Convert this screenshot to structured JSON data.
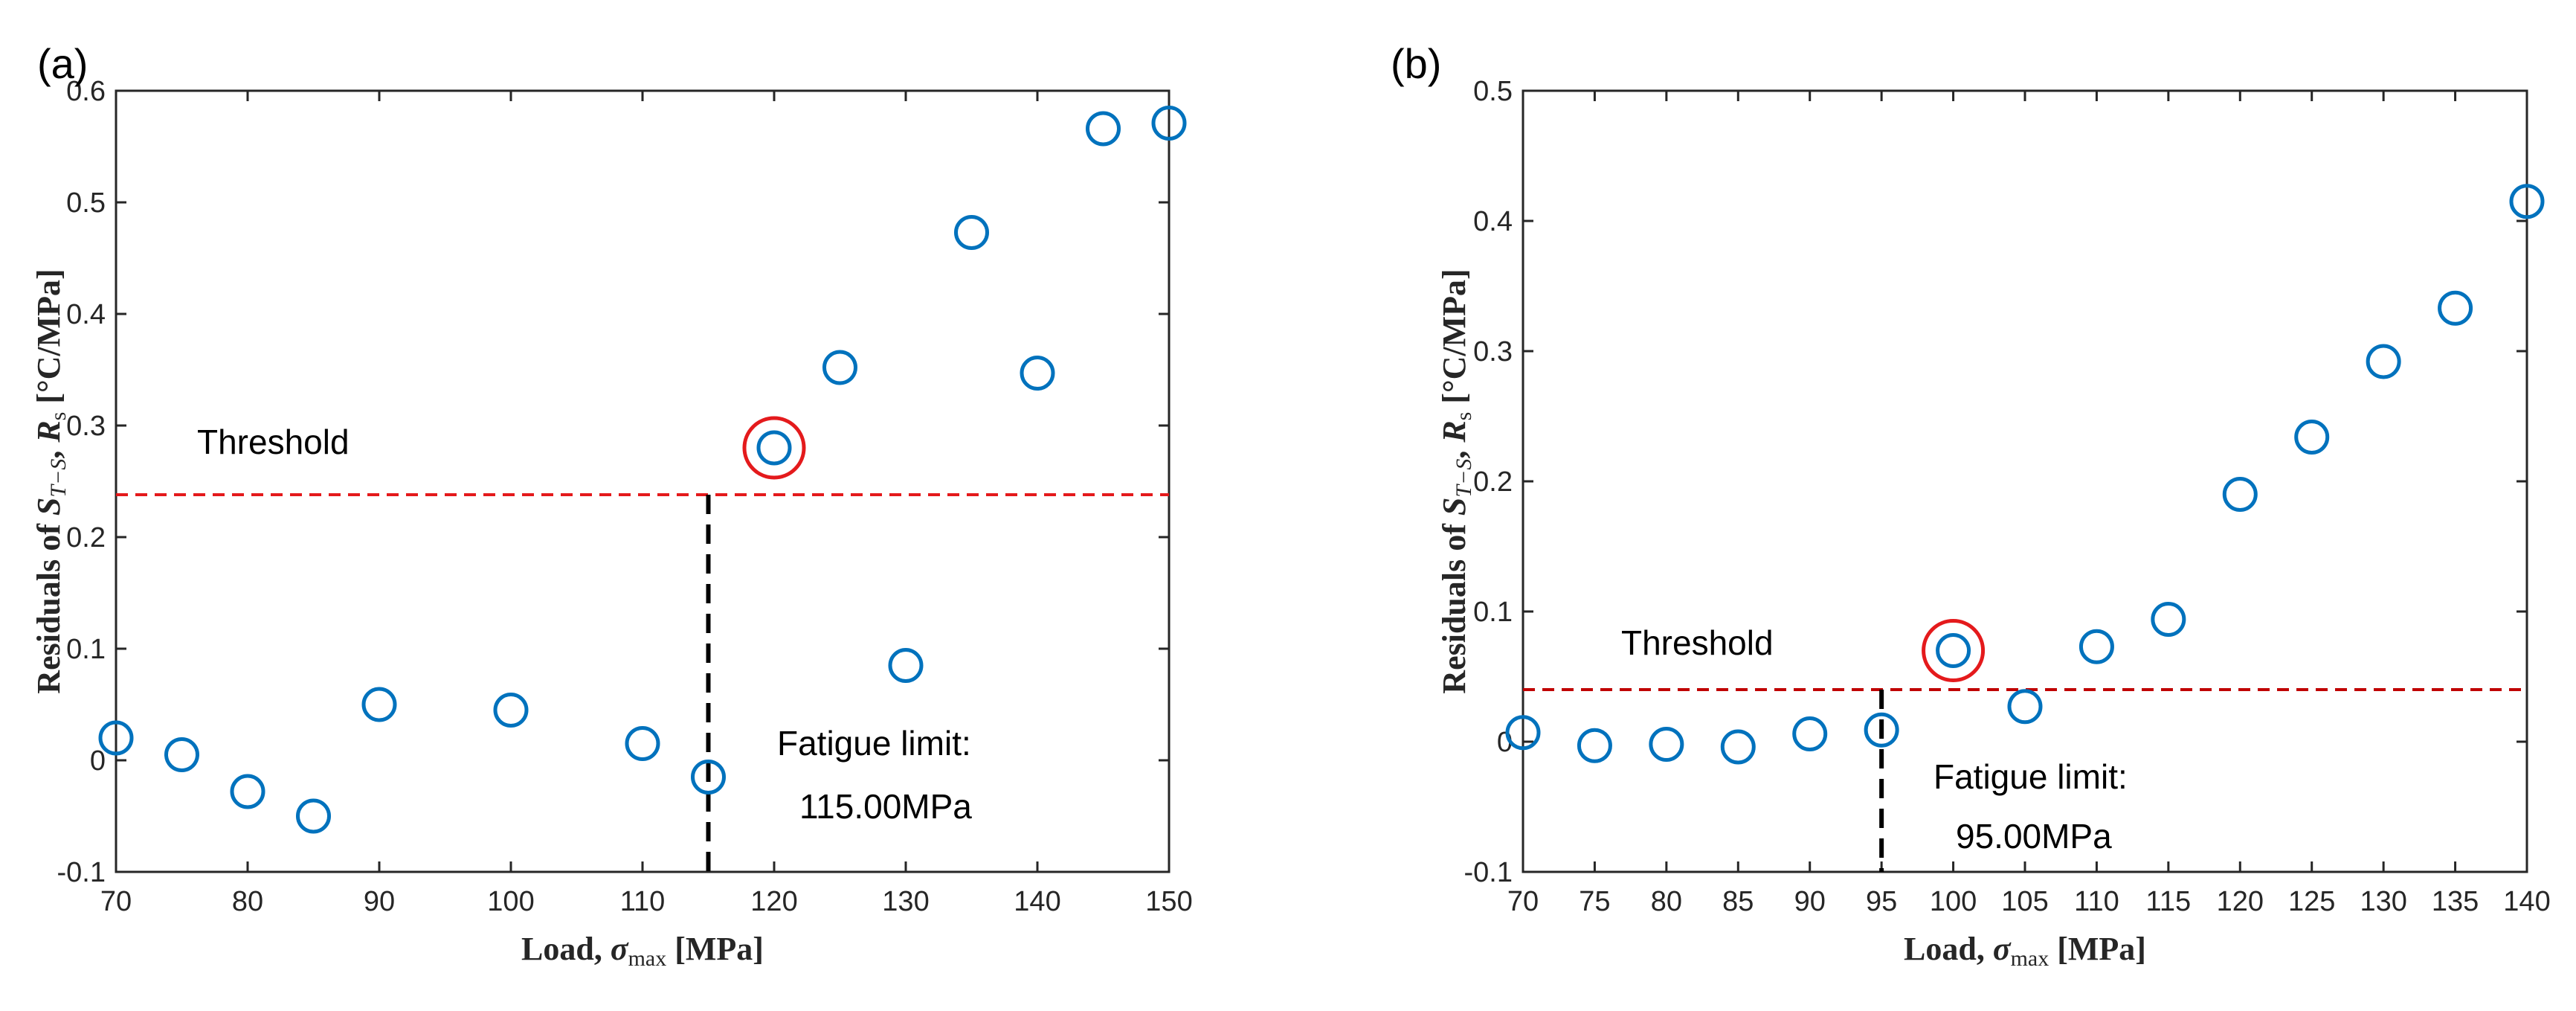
{
  "chart_data": [
    {
      "type": "scatter",
      "panel_label": "(a)",
      "xlabel_text": "Load, ",
      "xlabel_math_symbol": "σ",
      "xlabel_math_sub": "max",
      "xlabel_unit": " [MPa]",
      "ylabel_text": "Residuals of ",
      "ylabel_math_symbol": "S",
      "ylabel_math_sub": "T−S",
      "ylabel_mid": ", ",
      "ylabel_math2_symbol": "R",
      "ylabel_math2_sub": "s",
      "ylabel_unit": " [°C/MPa]",
      "xlim": [
        70,
        150
      ],
      "ylim": [
        -0.1,
        0.6
      ],
      "xticks": [
        70,
        80,
        90,
        100,
        110,
        120,
        130,
        140,
        150
      ],
      "yticks": [
        -0.1,
        0,
        0.1,
        0.2,
        0.3,
        0.4,
        0.5,
        0.6
      ],
      "xtick_labels": [
        "70",
        "80",
        "90",
        "100",
        "110",
        "120",
        "130",
        "140",
        "150"
      ],
      "ytick_labels": [
        "-0.1",
        "0",
        "0.1",
        "0.2",
        "0.3",
        "0.4",
        "0.5",
        "0.6"
      ],
      "series": [
        {
          "name": "Residuals",
          "x": [
            70,
            75,
            80,
            85,
            90,
            100,
            110,
            115,
            120,
            125,
            130,
            135,
            140,
            145,
            150
          ],
          "y": [
            0.02,
            0.005,
            -0.028,
            -0.05,
            0.05,
            0.045,
            0.015,
            -0.015,
            0.28,
            0.352,
            0.085,
            0.473,
            0.347,
            0.566,
            0.571
          ],
          "color": "#0072BD"
        }
      ],
      "highlight": {
        "x": 120,
        "y": 0.28,
        "color": "#E41A1C"
      },
      "threshold": {
        "label": "Threshold",
        "value": 0.238,
        "color": "#E41A1C"
      },
      "fatigue_limit": {
        "x": 115,
        "label_line1": "Fatigue limit:",
        "label_line2": "115.00MPa",
        "color": "#000000"
      }
    },
    {
      "type": "scatter",
      "panel_label": "(b)",
      "xlabel_text": "Load, ",
      "xlabel_math_symbol": "σ",
      "xlabel_math_sub": "max",
      "xlabel_unit": " [MPa]",
      "ylabel_text": "Residuals of ",
      "ylabel_math_symbol": "S",
      "ylabel_math_sub": "T−S",
      "ylabel_mid": ", ",
      "ylabel_math2_symbol": "R",
      "ylabel_math2_sub": "s",
      "ylabel_unit": " [°C/MPa]",
      "xlim": [
        70,
        140
      ],
      "ylim": [
        -0.1,
        0.5
      ],
      "xticks": [
        70,
        75,
        80,
        85,
        90,
        95,
        100,
        105,
        110,
        115,
        120,
        125,
        130,
        135,
        140
      ],
      "yticks": [
        -0.1,
        0,
        0.1,
        0.2,
        0.3,
        0.4,
        0.5
      ],
      "xtick_labels": [
        "70",
        "75",
        "80",
        "85",
        "90",
        "95",
        "100",
        "105",
        "110",
        "115",
        "120",
        "125",
        "130",
        "135",
        "140"
      ],
      "ytick_labels": [
        "-0.1",
        "0",
        "0.1",
        "0.2",
        "0.3",
        "0.4",
        "0.5"
      ],
      "series": [
        {
          "name": "Residuals",
          "x": [
            70,
            75,
            80,
            85,
            90,
            95,
            100,
            105,
            110,
            115,
            120,
            125,
            130,
            135,
            140
          ],
          "y": [
            0.007,
            -0.003,
            -0.002,
            -0.004,
            0.006,
            0.009,
            0.07,
            0.027,
            0.073,
            0.094,
            0.19,
            0.234,
            0.292,
            0.333,
            0.415
          ],
          "color": "#0072BD"
        }
      ],
      "highlight": {
        "x": 100,
        "y": 0.07,
        "color": "#E41A1C"
      },
      "threshold": {
        "label": "Threshold",
        "value": 0.04,
        "color": "#C00000"
      },
      "fatigue_limit": {
        "x": 95,
        "label_line1": "Fatigue limit:",
        "label_line2": "95.00MPa",
        "color": "#000000"
      }
    }
  ]
}
